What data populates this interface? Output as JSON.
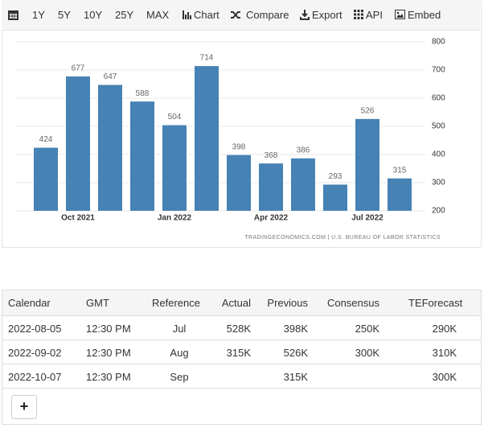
{
  "toolbar": {
    "ranges": [
      "1Y",
      "5Y",
      "10Y",
      "25Y",
      "MAX"
    ],
    "actions": [
      "Chart",
      "Compare",
      "Export",
      "API",
      "Embed"
    ]
  },
  "chart_data": {
    "type": "bar",
    "categories": [
      null,
      "Oct 2021",
      null,
      null,
      "Jan 2022",
      null,
      null,
      "Apr 2022",
      null,
      null,
      "Jul 2022",
      null
    ],
    "values": [
      424,
      677,
      647,
      588,
      504,
      714,
      398,
      368,
      386,
      293,
      526,
      315
    ],
    "color": "#4682b4",
    "ylim": [
      200,
      800
    ],
    "yticks": [
      200,
      300,
      400,
      500,
      600,
      700,
      800
    ],
    "grid": true,
    "source": "TRADINGECONOMICS.COM | U.S. BUREAU OF LABOR STATISTICS"
  },
  "table": {
    "headers": [
      "Calendar",
      "GMT",
      "Reference",
      "Actual",
      "Previous",
      "Consensus",
      "TEForecast"
    ],
    "rows": [
      [
        "2022-08-05",
        "12:30 PM",
        "Jul",
        "528K",
        "398K",
        "250K",
        "290K"
      ],
      [
        "2022-09-02",
        "12:30 PM",
        "Aug",
        "315K",
        "526K",
        "300K",
        "310K"
      ],
      [
        "2022-10-07",
        "12:30 PM",
        "Sep",
        null,
        "315K",
        null,
        "300K"
      ]
    ],
    "add_button": "+"
  }
}
